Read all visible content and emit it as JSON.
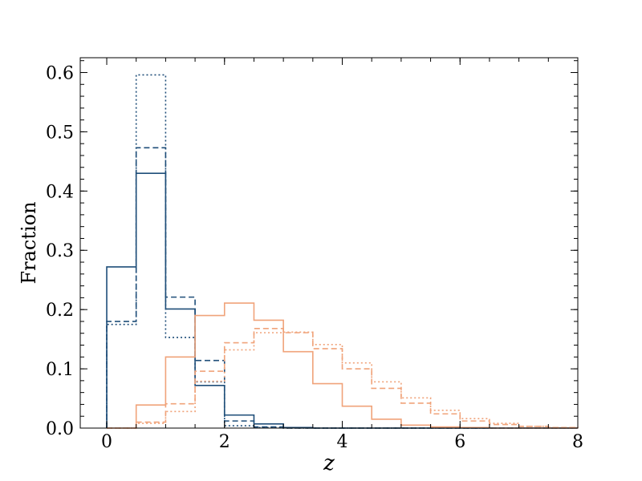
{
  "chart_data": {
    "type": "step-histogram",
    "title": "",
    "xlabel": "z",
    "ylabel": "Fraction",
    "xlim": [
      -0.45,
      8
    ],
    "ylim": [
      0,
      0.625
    ],
    "x_ticks": [
      0,
      2,
      4,
      6,
      8
    ],
    "y_ticks": [
      0.0,
      0.1,
      0.2,
      0.3,
      0.4,
      0.5,
      0.6
    ],
    "x_tick_labels": [
      "0",
      "2",
      "4",
      "6",
      "8"
    ],
    "y_tick_labels": [
      "0.0",
      "0.1",
      "0.2",
      "0.3",
      "0.4",
      "0.5",
      "0.6"
    ],
    "x_minor_step": 0.5,
    "y_minor_step": 0.02,
    "legend": "none",
    "grid": false,
    "bin_edges": [
      0,
      0.5,
      1,
      1.5,
      2,
      2.5,
      3,
      3.5,
      4,
      4.5,
      5,
      5.5,
      6,
      6.5,
      7,
      7.5,
      8
    ],
    "series": [
      {
        "color": "#1f4e79",
        "linestyle": "solid",
        "values": [
          0.272,
          0.43,
          0.201,
          0.072,
          0.022,
          0.007,
          0.001,
          0,
          0,
          0,
          0,
          0,
          0,
          0,
          0,
          0
        ]
      },
      {
        "color": "#1f4e79",
        "linestyle": "dashed",
        "values": [
          0.18,
          0.473,
          0.221,
          0.114,
          0.012,
          0.002,
          0,
          0,
          0,
          0,
          0,
          0,
          0,
          0,
          0,
          0
        ]
      },
      {
        "color": "#1f4e79",
        "linestyle": "dotted",
        "values": [
          0.175,
          0.596,
          0.153,
          0.078,
          0.004,
          0.001,
          0,
          0,
          0,
          0,
          0,
          0,
          0,
          0,
          0,
          0
        ]
      },
      {
        "color": "#f0a37a",
        "linestyle": "solid",
        "values": [
          0.0,
          0.039,
          0.12,
          0.19,
          0.211,
          0.182,
          0.129,
          0.075,
          0.037,
          0.015,
          0.005,
          0.002,
          0.001,
          0,
          0,
          0
        ]
      },
      {
        "color": "#f0a37a",
        "linestyle": "dashed",
        "values": [
          0.0,
          0.01,
          0.041,
          0.096,
          0.144,
          0.168,
          0.161,
          0.134,
          0.1,
          0.067,
          0.042,
          0.024,
          0.012,
          0.006,
          0.003,
          0.001
        ]
      },
      {
        "color": "#f0a37a",
        "linestyle": "dotted",
        "values": [
          0.0,
          0.008,
          0.028,
          0.079,
          0.132,
          0.161,
          0.162,
          0.141,
          0.11,
          0.078,
          0.051,
          0.03,
          0.016,
          0.008,
          0.003,
          0.001
        ]
      }
    ]
  }
}
